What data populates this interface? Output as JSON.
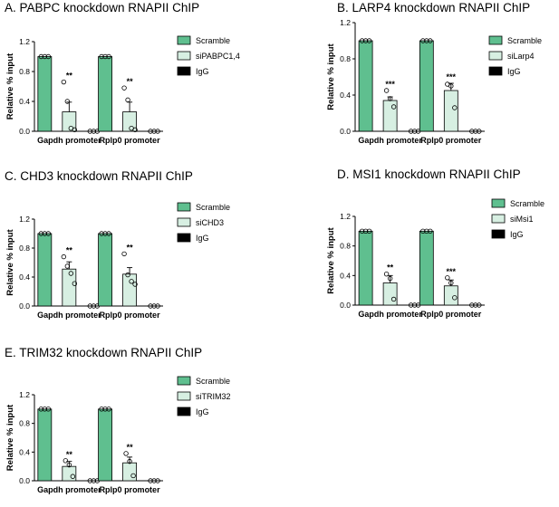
{
  "chart_data": [
    {
      "panel": "A",
      "type": "bar",
      "title": "A. PABPC knockdown RNAPII ChIP",
      "ylabel": "Relative % input",
      "xlabel": "",
      "ylim": [
        0,
        1.2
      ],
      "yticks": [
        "0.0",
        "0.4",
        "0.8",
        "1.2"
      ],
      "categories": [
        "Gapdh promoter",
        "Rplp0 promoter"
      ],
      "series": [
        {
          "name": "Scramble",
          "color": "#5fbf8f",
          "values": [
            1.0,
            1.0
          ],
          "errors": [
            0,
            0
          ],
          "points": [
            [
              1,
              1,
              1
            ],
            [
              1,
              1,
              1
            ]
          ],
          "sig": [
            "",
            ""
          ]
        },
        {
          "name": "siPABPC1,4",
          "color": "#d7efe2",
          "values": [
            0.26,
            0.26
          ],
          "errors": [
            0.13,
            0.13
          ],
          "points": [
            [
              0.66,
              0.4,
              0.04,
              0.02
            ],
            [
              0.58,
              0.42,
              0.04,
              0.02
            ]
          ],
          "sig": [
            "**",
            "**"
          ]
        },
        {
          "name": "IgG",
          "color": "#000000",
          "values": [
            0.0,
            0.0
          ],
          "errors": [
            0,
            0
          ],
          "points": [
            [
              0,
              0,
              0
            ],
            [
              0,
              0,
              0
            ]
          ],
          "sig": [
            "",
            ""
          ]
        }
      ],
      "legend": "top-right"
    },
    {
      "panel": "B",
      "type": "bar",
      "title": "B. LARP4 knockdown RNAPII ChIP",
      "ylabel": "Relative % input",
      "xlabel": "",
      "ylim": [
        0,
        1.2
      ],
      "yticks": [
        "0.0",
        "0.4",
        "0.8",
        "1.2"
      ],
      "categories": [
        "Gapdh promoter",
        "Rplp0 promoter"
      ],
      "series": [
        {
          "name": "Scramble",
          "color": "#5fbf8f",
          "values": [
            1.0,
            1.0
          ],
          "errors": [
            0,
            0
          ],
          "points": [
            [
              1,
              1,
              1
            ],
            [
              1,
              1,
              1
            ]
          ],
          "sig": [
            "",
            ""
          ]
        },
        {
          "name": "siLarp4",
          "color": "#d7efe2",
          "values": [
            0.34,
            0.45
          ],
          "errors": [
            0.04,
            0.08
          ],
          "points": [
            [
              0.45,
              0.36,
              0.27
            ],
            [
              0.52,
              0.5,
              0.26
            ]
          ],
          "sig": [
            "***",
            "***"
          ]
        },
        {
          "name": "IgG",
          "color": "#000000",
          "values": [
            0.0,
            0.0
          ],
          "errors": [
            0,
            0
          ],
          "points": [
            [
              0,
              0,
              0
            ],
            [
              0,
              0,
              0
            ]
          ],
          "sig": [
            "",
            ""
          ]
        }
      ],
      "legend": "top-right"
    },
    {
      "panel": "C",
      "type": "bar",
      "title": "C. CHD3 knockdown RNAPII ChIP",
      "ylabel": "Relative % input",
      "xlabel": "",
      "ylim": [
        0,
        1.2
      ],
      "yticks": [
        "0.0",
        "0.4",
        "0.8",
        "1.2"
      ],
      "categories": [
        "Gapdh promoter",
        "Rplp0 promoter"
      ],
      "series": [
        {
          "name": "Scramble",
          "color": "#5fbf8f",
          "values": [
            1.0,
            1.0
          ],
          "errors": [
            0,
            0
          ],
          "points": [
            [
              1,
              1,
              1
            ],
            [
              1,
              1,
              1
            ]
          ],
          "sig": [
            "",
            ""
          ]
        },
        {
          "name": "siCHD3",
          "color": "#d7efe2",
          "values": [
            0.51,
            0.44
          ],
          "errors": [
            0.1,
            0.09
          ],
          "points": [
            [
              0.68,
              0.55,
              0.45,
              0.31
            ],
            [
              0.72,
              0.43,
              0.34,
              0.3
            ]
          ],
          "sig": [
            "**",
            "**"
          ]
        },
        {
          "name": "IgG",
          "color": "#000000",
          "values": [
            0.0,
            0.0
          ],
          "errors": [
            0,
            0
          ],
          "points": [
            [
              0,
              0,
              0
            ],
            [
              0,
              0,
              0
            ]
          ],
          "sig": [
            "",
            ""
          ]
        }
      ],
      "legend": "top-right"
    },
    {
      "panel": "D",
      "type": "bar",
      "title": "D. MSI1 knockdown RNAPII ChIP",
      "ylabel": "Relative % input",
      "xlabel": "",
      "ylim": [
        0,
        1.2
      ],
      "yticks": [
        "0.0",
        "0.4",
        "0.8",
        "1.2"
      ],
      "categories": [
        "Gapdh promoter",
        "Rplp0 promoter"
      ],
      "series": [
        {
          "name": "Scramble",
          "color": "#5fbf8f",
          "values": [
            1.0,
            1.0
          ],
          "errors": [
            0,
            0
          ],
          "points": [
            [
              1,
              1,
              1
            ],
            [
              1,
              1,
              1
            ]
          ],
          "sig": [
            "",
            ""
          ]
        },
        {
          "name": "siMsi1",
          "color": "#d7efe2",
          "values": [
            0.3,
            0.26
          ],
          "errors": [
            0.1,
            0.08
          ],
          "points": [
            [
              0.42,
              0.36,
              0.08
            ],
            [
              0.37,
              0.3,
              0.1
            ]
          ],
          "sig": [
            "**",
            "***"
          ]
        },
        {
          "name": "IgG",
          "color": "#000000",
          "values": [
            0.0,
            0.0
          ],
          "errors": [
            0,
            0
          ],
          "points": [
            [
              0,
              0,
              0
            ],
            [
              0,
              0,
              0
            ]
          ],
          "sig": [
            "",
            ""
          ]
        }
      ],
      "legend": "top-right"
    },
    {
      "panel": "E",
      "type": "bar",
      "title": "E. TRIM32 knockdown RNAPII ChIP",
      "ylabel": "Relative % input",
      "xlabel": "",
      "ylim": [
        0,
        1.2
      ],
      "yticks": [
        "0.0",
        "0.4",
        "0.8",
        "1.2"
      ],
      "categories": [
        "Gapdh promoter",
        "Rplp0 promoter"
      ],
      "series": [
        {
          "name": "Scramble",
          "color": "#5fbf8f",
          "values": [
            1.0,
            1.0
          ],
          "errors": [
            0,
            0
          ],
          "points": [
            [
              1,
              1,
              1
            ],
            [
              1,
              1,
              1
            ]
          ],
          "sig": [
            "",
            ""
          ]
        },
        {
          "name": "siTRIM32",
          "color": "#d7efe2",
          "values": [
            0.2,
            0.25
          ],
          "errors": [
            0.07,
            0.08
          ],
          "points": [
            [
              0.28,
              0.22,
              0.06
            ],
            [
              0.38,
              0.27,
              0.07
            ]
          ],
          "sig": [
            "**",
            "**"
          ]
        },
        {
          "name": "IgG",
          "color": "#000000",
          "values": [
            0.0,
            0.0
          ],
          "errors": [
            0,
            0
          ],
          "points": [
            [
              0,
              0,
              0
            ],
            [
              0,
              0,
              0
            ]
          ],
          "sig": [
            "",
            ""
          ]
        }
      ],
      "legend": "top-right"
    }
  ]
}
